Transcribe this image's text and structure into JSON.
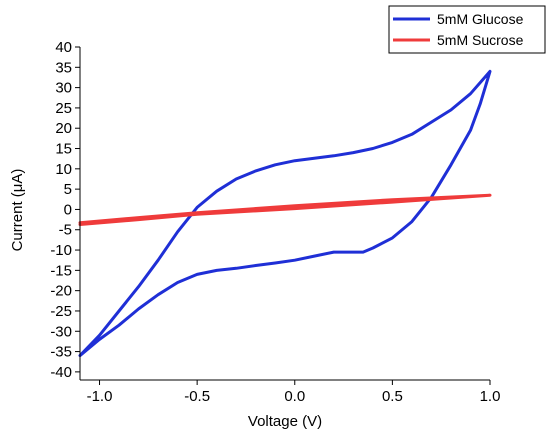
{
  "chart_data": {
    "type": "line",
    "xlabel": "Voltage (V)",
    "ylabel": "Current (μA)",
    "xlim": [
      -1.1,
      1.0
    ],
    "ylim": [
      -42,
      40
    ],
    "x_ticks": [
      -1.0,
      -0.5,
      0.0,
      0.5,
      1.0
    ],
    "x_tick_labels": [
      "-1.0",
      "-0.5",
      "0.0",
      "0.5",
      "1.0"
    ],
    "y_ticks": [
      -40,
      -35,
      -30,
      -25,
      -20,
      -15,
      -10,
      -5,
      0,
      5,
      10,
      15,
      20,
      25,
      30,
      35,
      40
    ],
    "y_tick_labels": [
      "-40",
      "-35",
      "-30",
      "-25",
      "-20",
      "-15",
      "-10",
      "-5",
      "0",
      "5",
      "10",
      "15",
      "20",
      "25",
      "30",
      "35",
      "40"
    ],
    "grid": false,
    "legend_position": "top-right",
    "series": [
      {
        "name": "5mM Glucose",
        "color": "#1f2fd6",
        "points": [
          [
            -1.1,
            -36
          ],
          [
            -1.0,
            -31
          ],
          [
            -0.9,
            -25
          ],
          [
            -0.8,
            -19
          ],
          [
            -0.7,
            -12.5
          ],
          [
            -0.6,
            -5.5
          ],
          [
            -0.5,
            0.5
          ],
          [
            -0.4,
            4.5
          ],
          [
            -0.3,
            7.5
          ],
          [
            -0.2,
            9.5
          ],
          [
            -0.1,
            11
          ],
          [
            0.0,
            12
          ],
          [
            0.1,
            12.6
          ],
          [
            0.2,
            13.2
          ],
          [
            0.3,
            14
          ],
          [
            0.4,
            15
          ],
          [
            0.5,
            16.5
          ],
          [
            0.6,
            18.5
          ],
          [
            0.7,
            21.5
          ],
          [
            0.8,
            24.5
          ],
          [
            0.9,
            28.5
          ],
          [
            1.0,
            34
          ],
          [
            0.95,
            26
          ],
          [
            0.9,
            19.5
          ],
          [
            0.8,
            11
          ],
          [
            0.7,
            3
          ],
          [
            0.6,
            -3
          ],
          [
            0.5,
            -7
          ],
          [
            0.4,
            -9.5
          ],
          [
            0.35,
            -10.5
          ],
          [
            0.3,
            -10.5
          ],
          [
            0.2,
            -10.5
          ],
          [
            0.1,
            -11.5
          ],
          [
            0.0,
            -12.5
          ],
          [
            -0.1,
            -13.2
          ],
          [
            -0.2,
            -13.8
          ],
          [
            -0.3,
            -14.5
          ],
          [
            -0.4,
            -15
          ],
          [
            -0.5,
            -16
          ],
          [
            -0.6,
            -18
          ],
          [
            -0.7,
            -21
          ],
          [
            -0.8,
            -24.5
          ],
          [
            -0.9,
            -28.5
          ],
          [
            -1.0,
            -32
          ],
          [
            -1.1,
            -36
          ]
        ]
      },
      {
        "name": "5mM Sucrose",
        "color": "#ef3b3b",
        "points": [
          [
            -1.1,
            -3.7
          ],
          [
            -0.8,
            -2.5
          ],
          [
            -0.5,
            -1.2
          ],
          [
            0.0,
            0.2
          ],
          [
            0.5,
            1.8
          ],
          [
            1.0,
            3.5
          ],
          [
            0.5,
            2.4
          ],
          [
            0.0,
            0.9
          ],
          [
            -0.5,
            -0.8
          ],
          [
            -0.8,
            -2.0
          ],
          [
            -1.1,
            -3.3
          ]
        ]
      }
    ]
  }
}
